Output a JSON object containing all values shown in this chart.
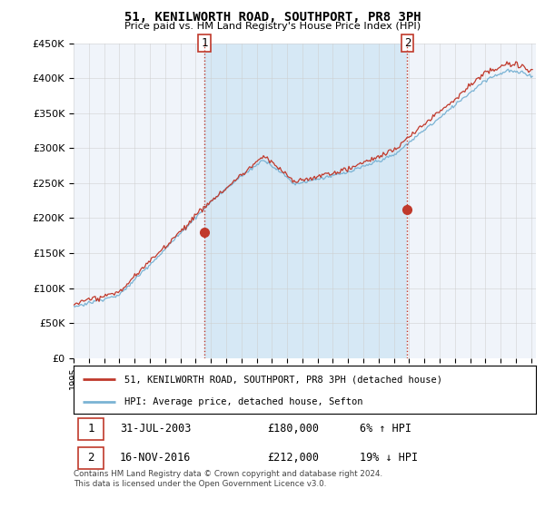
{
  "title": "51, KENILWORTH ROAD, SOUTHPORT, PR8 3PH",
  "subtitle": "Price paid vs. HM Land Registry's House Price Index (HPI)",
  "ylabel_ticks": [
    "£0",
    "£50K",
    "£100K",
    "£150K",
    "£200K",
    "£250K",
    "£300K",
    "£350K",
    "£400K",
    "£450K"
  ],
  "ylim": [
    0,
    450000
  ],
  "ytick_vals": [
    0,
    50000,
    100000,
    150000,
    200000,
    250000,
    300000,
    350000,
    400000,
    450000
  ],
  "xlim_start": 1995,
  "xlim_end": 2025.3,
  "sale1_x": 2003.58,
  "sale1_y": 180000,
  "sale2_x": 2016.88,
  "sale2_y": 212000,
  "hpi_color": "#7ab3d4",
  "price_color": "#c0392b",
  "vline_color": "#c0392b",
  "shade_color": "#d6e8f5",
  "grid_color": "#cccccc",
  "bg_color": "#f0f4fa",
  "legend_line1": "51, KENILWORTH ROAD, SOUTHPORT, PR8 3PH (detached house)",
  "legend_line2": "HPI: Average price, detached house, Sefton",
  "table_row1_num": "1",
  "table_row1_date": "31-JUL-2003",
  "table_row1_price": "£180,000",
  "table_row1_hpi": "6% ↑ HPI",
  "table_row2_num": "2",
  "table_row2_date": "16-NOV-2016",
  "table_row2_price": "£212,000",
  "table_row2_hpi": "19% ↓ HPI",
  "footnote1": "Contains HM Land Registry data © Crown copyright and database right 2024.",
  "footnote2": "This data is licensed under the Open Government Licence v3.0."
}
